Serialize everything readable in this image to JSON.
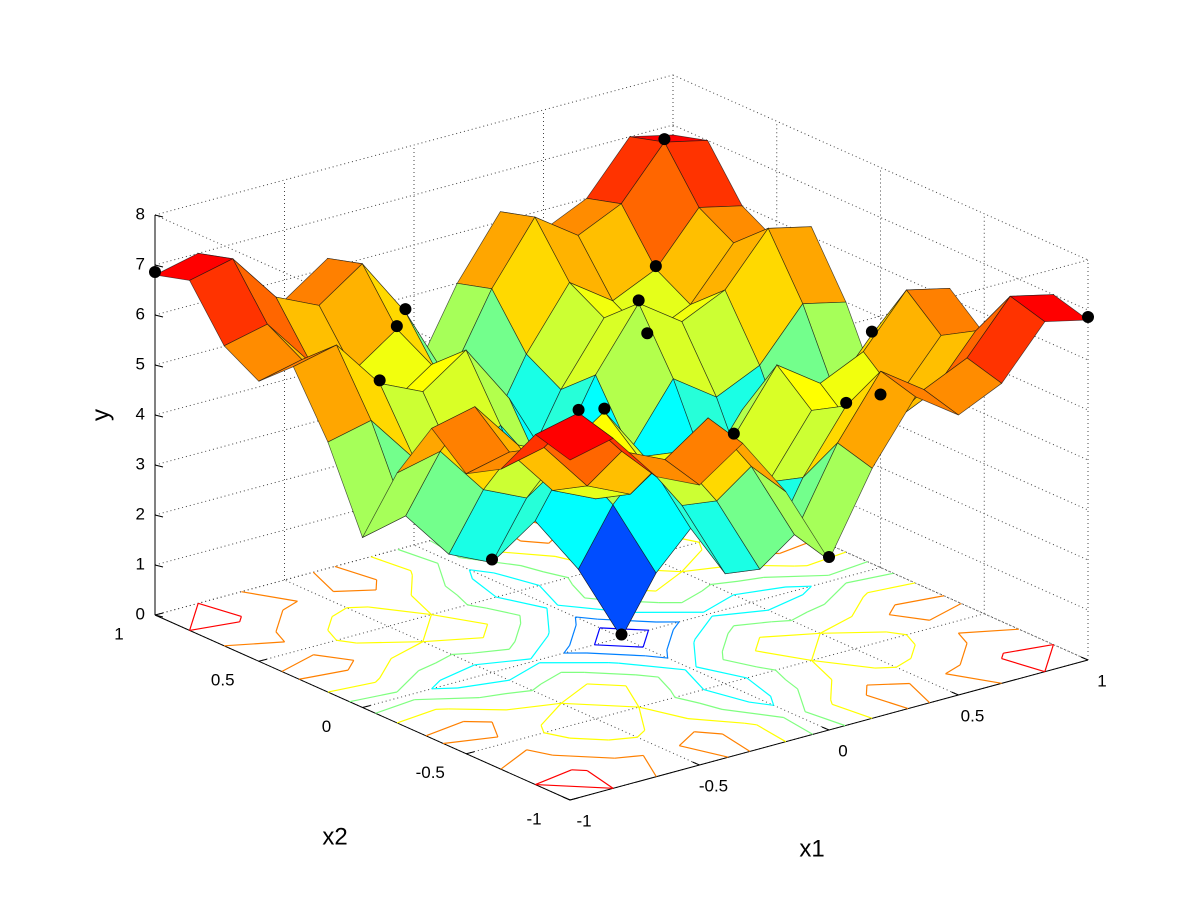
{
  "chart_data": {
    "type": "surface",
    "x_label": "x1",
    "y_label": "x2",
    "z_label": "y",
    "x": [
      -1,
      -0.8333,
      -0.6667,
      -0.5,
      -0.3333,
      -0.1667,
      0,
      0.1667,
      0.3333,
      0.5,
      0.6667,
      0.8333,
      1
    ],
    "y": [
      -1,
      -0.8333,
      -0.6667,
      -0.5,
      -0.3333,
      -0.1667,
      0,
      0.1667,
      0.3333,
      0.5,
      0.6667,
      0.8333,
      1
    ],
    "z": [
      [
        6.8,
        7.0,
        6.0,
        5.6,
        6.2,
        5.0,
        3.4,
        5.0,
        6.2,
        5.6,
        6.0,
        7.0,
        6.8
      ],
      [
        7.0,
        7.2,
        6.2,
        5.8,
        6.4,
        5.2,
        3.6,
        5.2,
        6.4,
        5.8,
        6.2,
        7.2,
        7.0
      ],
      [
        6.0,
        6.2,
        5.2,
        4.8,
        5.4,
        4.2,
        2.6,
        4.2,
        5.4,
        4.8,
        5.2,
        6.2,
        6.0
      ],
      [
        5.6,
        5.8,
        4.8,
        4.4,
        5.0,
        3.8,
        2.2,
        3.8,
        5.0,
        4.4,
        4.8,
        5.8,
        5.6
      ],
      [
        6.2,
        6.4,
        5.4,
        5.0,
        5.6,
        4.4,
        2.8,
        4.4,
        5.6,
        5.0,
        5.4,
        6.4,
        6.2
      ],
      [
        5.0,
        5.2,
        4.2,
        3.8,
        4.4,
        3.2,
        1.6,
        3.2,
        4.4,
        3.8,
        4.2,
        5.2,
        5.0
      ],
      [
        3.4,
        3.6,
        2.6,
        2.2,
        2.8,
        1.6,
        0,
        1.6,
        2.8,
        2.2,
        2.6,
        3.6,
        3.4
      ],
      [
        5.0,
        5.2,
        4.2,
        3.8,
        4.4,
        3.2,
        1.6,
        3.2,
        4.4,
        3.8,
        4.2,
        5.2,
        5.0
      ],
      [
        6.2,
        6.4,
        5.4,
        5.0,
        5.6,
        4.4,
        2.8,
        4.4,
        5.6,
        5.0,
        5.4,
        6.4,
        6.2
      ],
      [
        5.6,
        5.8,
        4.8,
        4.4,
        5.0,
        3.8,
        2.2,
        3.8,
        5.0,
        4.4,
        4.8,
        5.8,
        5.6
      ],
      [
        6.0,
        6.2,
        5.2,
        4.8,
        5.4,
        4.2,
        2.6,
        4.2,
        5.4,
        4.8,
        5.2,
        6.2,
        6.0
      ],
      [
        7.0,
        7.2,
        6.2,
        5.8,
        6.4,
        5.2,
        3.6,
        5.2,
        6.4,
        5.8,
        6.2,
        7.2,
        7.0
      ],
      [
        6.8,
        7.0,
        6.0,
        5.6,
        6.2,
        5.0,
        3.4,
        5.0,
        6.2,
        5.6,
        6.0,
        7.0,
        6.8
      ]
    ],
    "xlim": [
      -1,
      1
    ],
    "ylim": [
      -1,
      1
    ],
    "zlim": [
      0,
      8
    ],
    "xticks": [
      -1,
      -0.5,
      0,
      0.5,
      1
    ],
    "yticks": [
      -1,
      -0.5,
      0,
      0.5,
      1
    ],
    "zticks": [
      0,
      1,
      2,
      3,
      4,
      5,
      6,
      7,
      8
    ],
    "grid": true,
    "points": {
      "x": [
        -0.8333,
        0,
        -0.5,
        0.5,
        -0.3333,
        0.3333,
        -0.6667,
        0.8333,
        -0.1667,
        0,
        0.6667,
        1,
        0.1667,
        -0.3333,
        0.8333,
        -1,
        1,
        0.3333
      ],
      "y": [
        -0.8333,
        -1,
        0,
        0.5,
        -0.3333,
        -0.6667,
        0.3333,
        -0.1667,
        0.8333,
        0,
        0.6667,
        0,
        -0.3333,
        0.6667,
        0.8333,
        1,
        -1,
        0.3333
      ],
      "z": [
        7.2,
        3.4,
        2.2,
        4.4,
        5.6,
        5.4,
        5.4,
        5.2,
        5.2,
        0,
        5.2,
        3.4,
        4.4,
        5.4,
        7.2,
        6.8,
        6.8,
        5.6
      ]
    },
    "point_color": "#000000"
  }
}
